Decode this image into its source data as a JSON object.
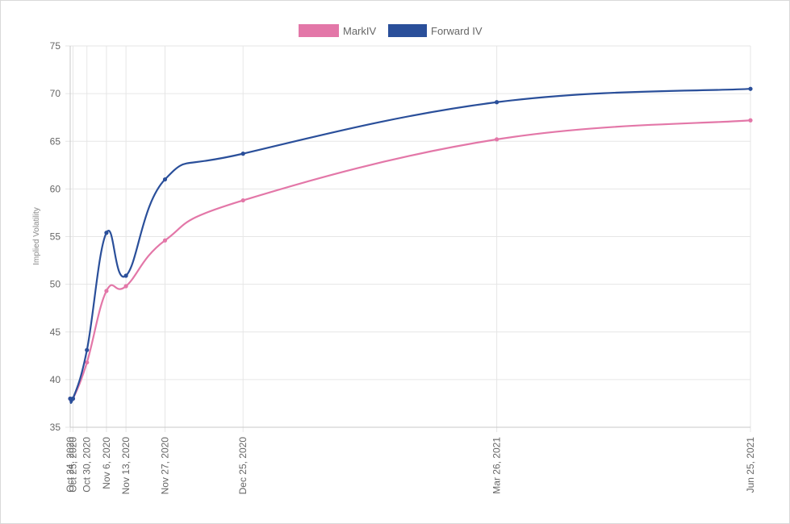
{
  "chart_data": {
    "type": "line",
    "ylabel": "Implied Volatility",
    "xlabel": "",
    "title": "",
    "ylim": [
      35,
      75
    ],
    "y_ticks": [
      35,
      40,
      45,
      50,
      55,
      60,
      65,
      70,
      75
    ],
    "x": [
      "Oct 24, 2020",
      "Oct 25, 2020",
      "Oct 30, 2020",
      "Nov 6, 2020",
      "Nov 13, 2020",
      "Nov 27, 2020",
      "Dec 25, 2020",
      "Mar 26, 2021",
      "Jun 25, 2021"
    ],
    "x_days": [
      0,
      1,
      6,
      13,
      20,
      34,
      62,
      153,
      244
    ],
    "x_labels": [
      "Oct 24, 2020",
      "Oct 25, 2020",
      "Oct 30, 2020",
      "Nov 6, 2020",
      "Nov 13, 2020",
      "Nov 27, 2020",
      "Dec 25, 2020",
      "Mar 26, 2021",
      "Jun 25, 2021"
    ],
    "grid": true,
    "legend": "top-center",
    "series": [
      {
        "name": "MarkIV",
        "color": "#e377a8",
        "values": [
          38.0,
          38.0,
          41.8,
          49.3,
          49.8,
          54.6,
          58.8,
          65.2,
          67.2
        ]
      },
      {
        "name": "Forward IV",
        "color": "#2a4f9a",
        "values": [
          38.0,
          38.0,
          43.1,
          55.4,
          50.9,
          61.0,
          63.7,
          69.1,
          70.5
        ]
      }
    ]
  }
}
